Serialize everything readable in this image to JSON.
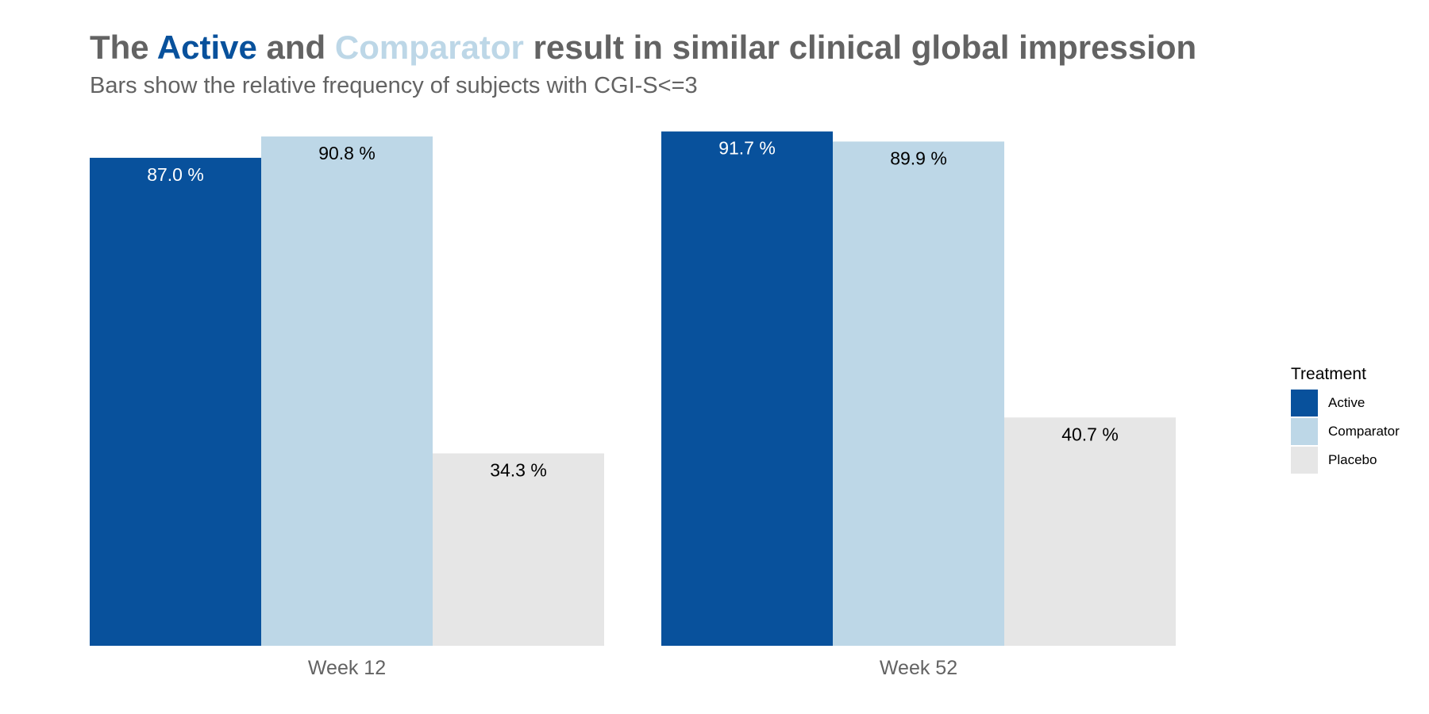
{
  "title": {
    "prefix": "The ",
    "highlight1": "Active",
    "middle": " and ",
    "highlight2": "Comparator",
    "suffix": " result in similar clinical global impression"
  },
  "subtitle": "Bars show the relative frequency of subjects with CGI-S<=3",
  "colors": {
    "Active": "#08519c",
    "Comparator": "#bdd7e7",
    "Placebo": "#e6e6e6",
    "text_gray": "#636363"
  },
  "chart_data": {
    "type": "bar",
    "categories": [
      "Week 12",
      "Week 52"
    ],
    "series": [
      {
        "name": "Active",
        "values": [
          87.0,
          91.7
        ],
        "labels": [
          "87.0 %",
          "91.7 %"
        ]
      },
      {
        "name": "Comparator",
        "values": [
          90.8,
          89.9
        ],
        "labels": [
          "90.8 %",
          "89.9 %"
        ]
      },
      {
        "name": "Placebo",
        "values": [
          34.3,
          40.7
        ],
        "labels": [
          "34.3 %",
          "40.7 %"
        ]
      }
    ],
    "ylim": [
      0,
      100
    ],
    "grid": false,
    "legend_position": "right"
  },
  "legend": {
    "title": "Treatment",
    "items": [
      "Active",
      "Comparator",
      "Placebo"
    ]
  }
}
